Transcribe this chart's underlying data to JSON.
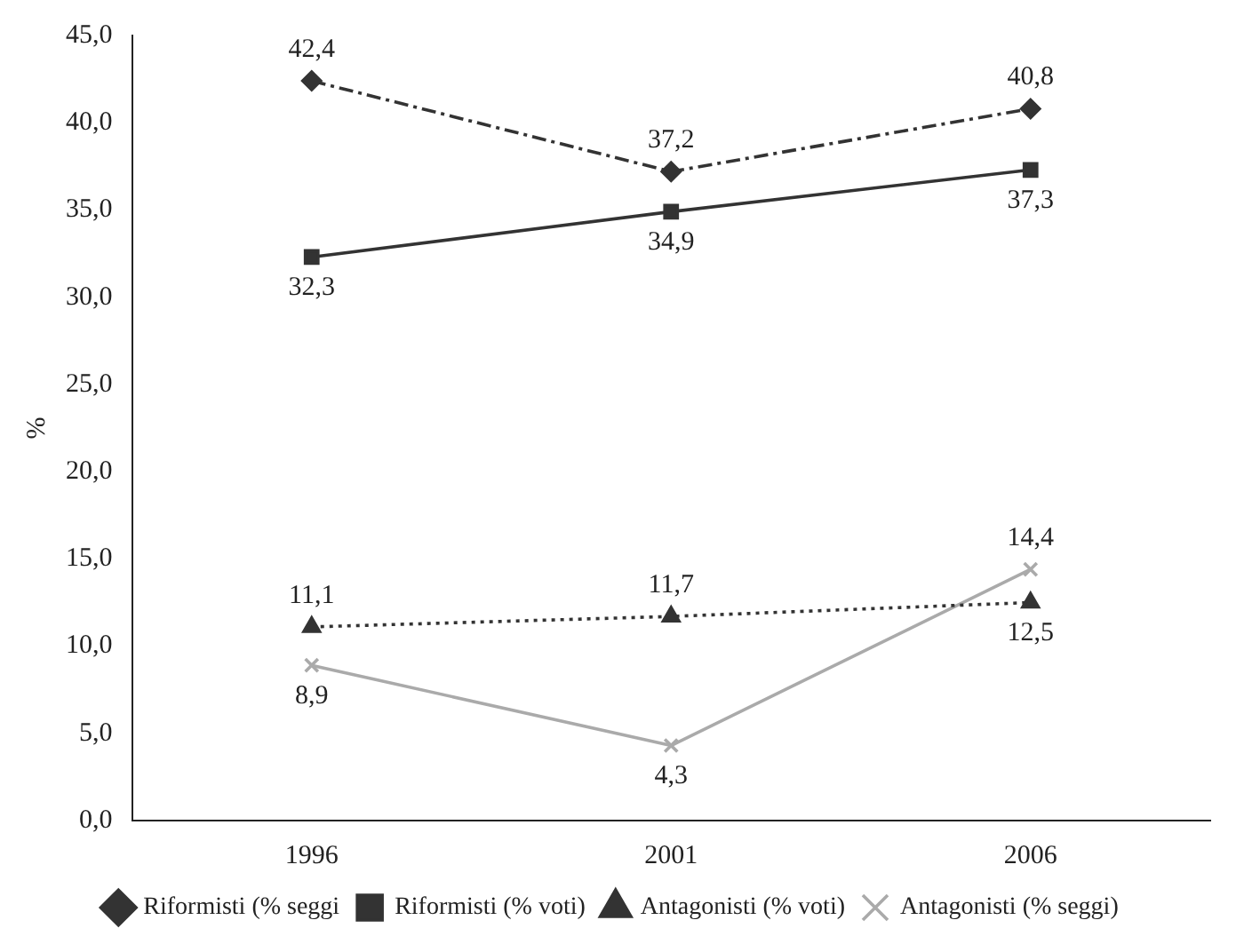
{
  "chart_data": {
    "type": "line",
    "ylabel": "%",
    "categories": [
      "1996",
      "2001",
      "2006"
    ],
    "ylim": [
      0,
      45
    ],
    "yticks": [
      {
        "value": 0,
        "label": "0,0"
      },
      {
        "value": 5,
        "label": "5,0"
      },
      {
        "value": 10,
        "label": "10,0"
      },
      {
        "value": 15,
        "label": "15,0"
      },
      {
        "value": 20,
        "label": "20,0"
      },
      {
        "value": 25,
        "label": "25,0"
      },
      {
        "value": 30,
        "label": "30,0"
      },
      {
        "value": 35,
        "label": "35,0"
      },
      {
        "value": 40,
        "label": "40,0"
      },
      {
        "value": 45,
        "label": "45,0"
      }
    ],
    "grid": false,
    "legend": "bottom",
    "series": [
      {
        "name": "Riformisti (% seggi",
        "color": "#333333",
        "marker": "diamond",
        "line_style": "dashdot",
        "values": [
          42.4,
          37.2,
          40.8
        ],
        "value_labels": [
          "42,4",
          "37,2",
          "40,8"
        ]
      },
      {
        "name": "Riformisti (% voti)",
        "color": "#333333",
        "marker": "square",
        "line_style": "solid",
        "values": [
          32.3,
          34.9,
          37.3
        ],
        "value_labels": [
          "32,3",
          "34,9",
          "37,3"
        ]
      },
      {
        "name": "Antagonisti (% voti)",
        "color": "#333333",
        "marker": "triangle",
        "line_style": "dotted",
        "values": [
          11.1,
          11.7,
          12.5
        ],
        "value_labels": [
          "11,1",
          "11,7",
          "12,5"
        ]
      },
      {
        "name": "Antagonisti (% seggi)",
        "color": "#aaaaaa",
        "marker": "cross",
        "line_style": "solid",
        "values": [
          8.9,
          4.3,
          14.4
        ],
        "value_labels": [
          "8,9",
          "4,3",
          "14,4"
        ]
      }
    ]
  }
}
